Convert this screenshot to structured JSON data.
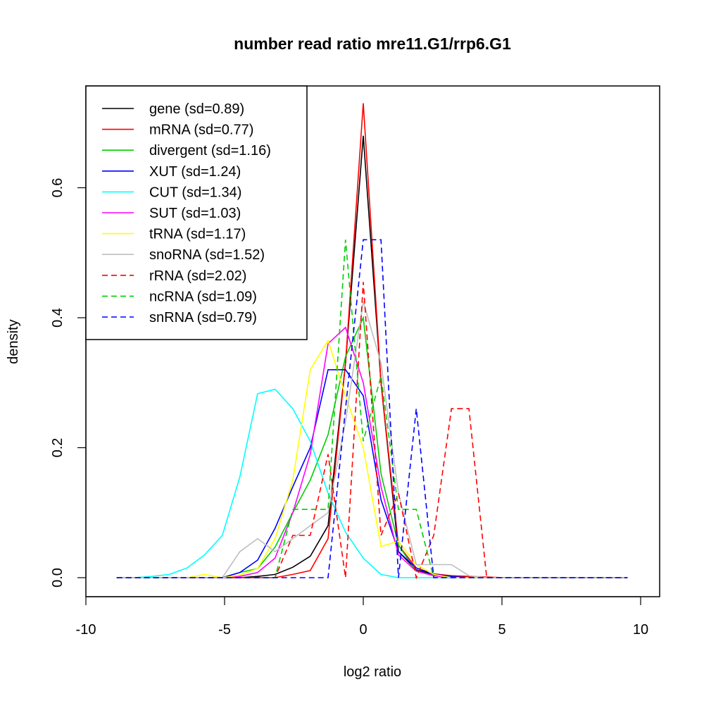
{
  "chart_data": {
    "type": "line",
    "title": "number read ratio mre11.G1/rrp6.G1",
    "xlabel": "log2 ratio",
    "ylabel": "density",
    "xlim": [
      -10,
      10
    ],
    "ylim": [
      0,
      0.73
    ],
    "xticks": [
      -10,
      -5,
      0,
      5,
      10
    ],
    "xtick_labels": [
      "-10",
      "-5",
      "0",
      "5",
      "10"
    ],
    "yticks": [
      0,
      0.2,
      0.4,
      0.6
    ],
    "ytick_labels": [
      "0.0",
      "0.2",
      "0.4",
      "0.6"
    ],
    "grid": false,
    "legend_position": "top-left",
    "x": [
      -8.89,
      -8.26,
      -7.62,
      -6.99,
      -6.35,
      -5.72,
      -5.08,
      -4.45,
      -3.81,
      -3.18,
      -2.54,
      -1.91,
      -1.27,
      -0.64,
      0,
      0.64,
      1.27,
      1.91,
      2.54,
      3.18,
      3.81,
      4.45,
      5.08,
      5.72,
      6.35,
      6.99,
      7.62,
      8.26,
      8.89,
      9.53
    ],
    "series": [
      {
        "name": "gene (sd=0.89)",
        "color": "#000000",
        "dashed": false,
        "values": [
          0,
          0,
          0,
          0,
          0,
          0,
          0,
          0,
          0.002,
          0.005,
          0.016,
          0.033,
          0.08,
          0.33,
          0.68,
          0.3,
          0.04,
          0.012,
          0.005,
          0.002,
          0.001,
          0,
          0,
          0,
          0,
          0,
          0,
          0,
          0,
          0
        ]
      },
      {
        "name": "mRNA (sd=0.77)",
        "color": "#ff0000",
        "dashed": false,
        "values": [
          0,
          0,
          0,
          0,
          0,
          0,
          0,
          0,
          0,
          0,
          0.005,
          0.011,
          0.06,
          0.33,
          0.73,
          0.3,
          0.05,
          0.015,
          0.006,
          0.003,
          0.002,
          0.001,
          0,
          0,
          0,
          0,
          0,
          0,
          0,
          0
        ]
      },
      {
        "name": "divergent (sd=1.16)",
        "color": "#00cd00",
        "dashed": false,
        "values": [
          0,
          0,
          0,
          0,
          0,
          0,
          0,
          0.008,
          0.014,
          0.047,
          0.1,
          0.15,
          0.22,
          0.34,
          0.4,
          0.16,
          0.05,
          0.01,
          0.003,
          0,
          0,
          0,
          0,
          0,
          0,
          0,
          0,
          0,
          0,
          0
        ]
      },
      {
        "name": "XUT (sd=1.24)",
        "color": "#0000ff",
        "dashed": false,
        "values": [
          0,
          0,
          0,
          0,
          0,
          0,
          0,
          0.008,
          0.027,
          0.076,
          0.14,
          0.2,
          0.32,
          0.32,
          0.28,
          0.12,
          0.04,
          0.015,
          0.005,
          0.002,
          0,
          0,
          0,
          0,
          0,
          0,
          0,
          0,
          0,
          0
        ]
      },
      {
        "name": "CUT (sd=1.34)",
        "color": "#00ffff",
        "dashed": false,
        "values": [
          0,
          0,
          0.002,
          0.005,
          0.015,
          0.035,
          0.065,
          0.155,
          0.283,
          0.29,
          0.26,
          0.21,
          0.13,
          0.07,
          0.03,
          0.005,
          0,
          0,
          0,
          0,
          0,
          0,
          0,
          0,
          0,
          0,
          0,
          0,
          0,
          0
        ]
      },
      {
        "name": "SUT (sd=1.03)",
        "color": "#ff00ff",
        "dashed": false,
        "values": [
          0,
          0,
          0,
          0,
          0,
          0,
          0,
          0.002,
          0.008,
          0.03,
          0.1,
          0.19,
          0.36,
          0.385,
          0.3,
          0.14,
          0.035,
          0.01,
          0.003,
          0,
          0,
          0,
          0,
          0,
          0,
          0,
          0,
          0,
          0,
          0
        ]
      },
      {
        "name": "tRNA (sd=1.17)",
        "color": "#ffff00",
        "dashed": false,
        "values": [
          0,
          0,
          0,
          0,
          0,
          0.005,
          0,
          0.004,
          0.014,
          0.06,
          0.15,
          0.32,
          0.365,
          0.28,
          0.2,
          0.048,
          0.056,
          0.02,
          0.005,
          0,
          0,
          0,
          0,
          0,
          0,
          0,
          0,
          0,
          0,
          0
        ]
      },
      {
        "name": "snoRNA (sd=1.52)",
        "color": "#bebebe",
        "dashed": false,
        "values": [
          0,
          0,
          0,
          0,
          0,
          0,
          0,
          0.04,
          0.06,
          0.04,
          0.06,
          0.08,
          0.1,
          0.24,
          0.425,
          0.33,
          0.13,
          0.02,
          0.02,
          0.02,
          0.003,
          0,
          0,
          0,
          0,
          0,
          0,
          0,
          0,
          0
        ]
      },
      {
        "name": "rRNA (sd=2.02)",
        "color": "#ff0000",
        "dashed": true,
        "values": [
          0,
          0,
          0,
          0,
          0,
          0,
          0,
          0,
          0,
          0,
          0.065,
          0.065,
          0.19,
          0,
          0.455,
          0.065,
          0.13,
          0,
          0.065,
          0.26,
          0.26,
          0,
          0,
          0,
          0,
          0,
          0,
          0,
          0,
          0
        ]
      },
      {
        "name": "ncRNA (sd=1.09)",
        "color": "#00cd00",
        "dashed": true,
        "values": [
          0,
          0,
          0,
          0,
          0,
          0,
          0,
          0,
          0,
          0,
          0.105,
          0.105,
          0.105,
          0.52,
          0.21,
          0.31,
          0.105,
          0.105,
          0,
          0,
          0,
          0,
          0,
          0,
          0,
          0,
          0,
          0,
          0,
          0
        ]
      },
      {
        "name": "snRNA (sd=0.79)",
        "color": "#0000ff",
        "dashed": true,
        "values": [
          0,
          0,
          0,
          0,
          0,
          0,
          0,
          0,
          0,
          0,
          0,
          0,
          0,
          0.26,
          0.52,
          0.52,
          0,
          0.26,
          0,
          0,
          0,
          0,
          0,
          0,
          0,
          0,
          0,
          0,
          0,
          0
        ]
      }
    ]
  }
}
